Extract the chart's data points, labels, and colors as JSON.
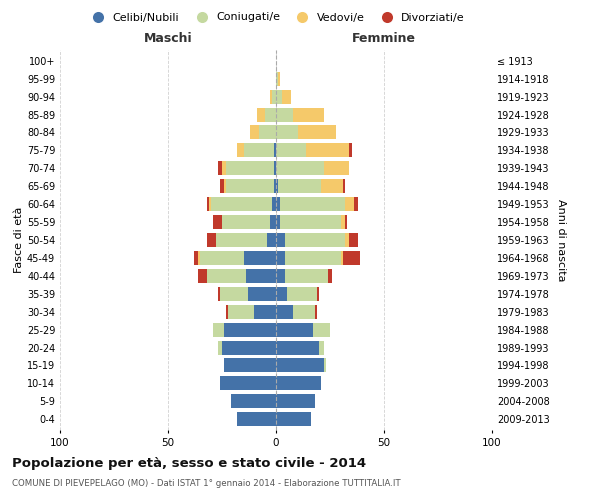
{
  "age_groups": [
    "0-4",
    "5-9",
    "10-14",
    "15-19",
    "20-24",
    "25-29",
    "30-34",
    "35-39",
    "40-44",
    "45-49",
    "50-54",
    "55-59",
    "60-64",
    "65-69",
    "70-74",
    "75-79",
    "80-84",
    "85-89",
    "90-94",
    "95-99",
    "100+"
  ],
  "birth_years": [
    "2009-2013",
    "2004-2008",
    "1999-2003",
    "1994-1998",
    "1989-1993",
    "1984-1988",
    "1979-1983",
    "1974-1978",
    "1969-1973",
    "1964-1968",
    "1959-1963",
    "1954-1958",
    "1949-1953",
    "1944-1948",
    "1939-1943",
    "1934-1938",
    "1929-1933",
    "1924-1928",
    "1919-1923",
    "1914-1918",
    "≤ 1913"
  ],
  "male": {
    "celibi": [
      18,
      21,
      26,
      24,
      25,
      24,
      10,
      13,
      14,
      15,
      4,
      3,
      2,
      1,
      1,
      1,
      0,
      0,
      0,
      0,
      0
    ],
    "coniugati": [
      0,
      0,
      0,
      0,
      2,
      5,
      12,
      13,
      18,
      20,
      24,
      22,
      28,
      22,
      22,
      14,
      8,
      5,
      2,
      0,
      0
    ],
    "vedovi": [
      0,
      0,
      0,
      0,
      0,
      0,
      0,
      0,
      0,
      1,
      0,
      0,
      1,
      1,
      2,
      3,
      4,
      4,
      1,
      0,
      0
    ],
    "divorziati": [
      0,
      0,
      0,
      0,
      0,
      0,
      1,
      1,
      4,
      2,
      4,
      4,
      1,
      2,
      2,
      0,
      0,
      0,
      0,
      0,
      0
    ]
  },
  "female": {
    "nubili": [
      16,
      18,
      21,
      22,
      20,
      17,
      8,
      5,
      4,
      4,
      4,
      2,
      2,
      1,
      0,
      0,
      0,
      0,
      0,
      0,
      0
    ],
    "coniugate": [
      0,
      0,
      0,
      1,
      2,
      8,
      10,
      14,
      20,
      26,
      28,
      28,
      30,
      20,
      22,
      14,
      10,
      8,
      3,
      1,
      0
    ],
    "vedove": [
      0,
      0,
      0,
      0,
      0,
      0,
      0,
      0,
      0,
      1,
      2,
      2,
      4,
      10,
      12,
      20,
      18,
      14,
      4,
      1,
      0
    ],
    "divorziate": [
      0,
      0,
      0,
      0,
      0,
      0,
      1,
      1,
      2,
      8,
      4,
      1,
      2,
      1,
      0,
      1,
      0,
      0,
      0,
      0,
      0
    ]
  },
  "colors": {
    "celibi": "#4472a8",
    "coniugati": "#c5d9a0",
    "vedovi": "#f5c96a",
    "divorziati": "#c0392b"
  },
  "xlim": 100,
  "title": "Popolazione per età, sesso e stato civile - 2014",
  "subtitle": "COMUNE DI PIEVEPELAGO (MO) - Dati ISTAT 1° gennaio 2014 - Elaborazione TUTTITALIA.IT",
  "ylabel_left": "Fasce di età",
  "ylabel_right": "Anni di nascita",
  "xlabel_left": "Maschi",
  "xlabel_right": "Femmine",
  "legend_labels": [
    "Celibi/Nubili",
    "Coniugati/e",
    "Vedovi/e",
    "Divorziati/e"
  ],
  "bg_color": "#ffffff",
  "grid_color": "#cccccc"
}
